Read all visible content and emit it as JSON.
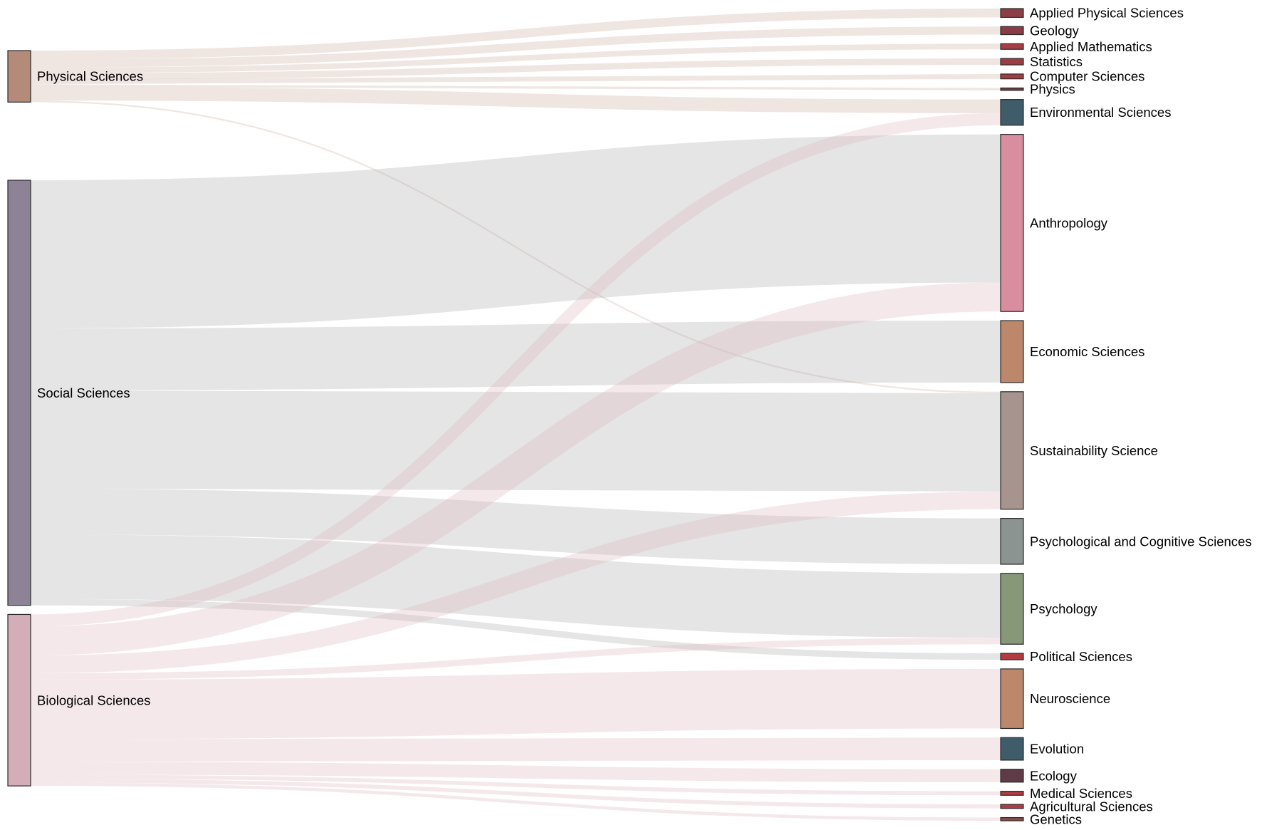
{
  "chart_data": {
    "type": "sankey",
    "nodes": [
      {
        "name": "Physical Sciences",
        "color": "#b38b78",
        "link_color": "#cdb1a4"
      },
      {
        "name": "Social Sciences",
        "color": "#8e8296",
        "link_color": "#aeaeae"
      },
      {
        "name": "Biological Sciences",
        "color": "#d3adb8",
        "link_color": "#ddb7c1"
      },
      {
        "name": "Applied Physical Sciences",
        "color": "#8c3d45"
      },
      {
        "name": "Geology",
        "color": "#8c3a44"
      },
      {
        "name": "Applied Mathematics",
        "color": "#a63c46"
      },
      {
        "name": "Statistics",
        "color": "#9e3b45"
      },
      {
        "name": "Computer Sciences",
        "color": "#a63a42"
      },
      {
        "name": "Physics",
        "color": "#6e3a44"
      },
      {
        "name": "Environmental Sciences",
        "color": "#3e5c69"
      },
      {
        "name": "Anthropology",
        "color": "#d98e9f"
      },
      {
        "name": "Economic Sciences",
        "color": "#bc876b"
      },
      {
        "name": "Sustainability Science",
        "color": "#a7948e"
      },
      {
        "name": "Psychological and Cognitive Sciences",
        "color": "#8b9491"
      },
      {
        "name": "Psychology",
        "color": "#869878"
      },
      {
        "name": "Political Sciences",
        "color": "#b33a42"
      },
      {
        "name": "Neuroscience",
        "color": "#bc876b"
      },
      {
        "name": "Evolution",
        "color": "#3e5c69"
      },
      {
        "name": "Ecology",
        "color": "#5f3b48"
      },
      {
        "name": "Medical Sciences",
        "color": "#b33a42"
      },
      {
        "name": "Agricultural Sciences",
        "color": "#b33a42"
      },
      {
        "name": "Genetics",
        "color": "#8a4a48"
      }
    ],
    "links": [
      {
        "source": 0,
        "target": 3,
        "value": 11
      },
      {
        "source": 0,
        "target": 4,
        "value": 10
      },
      {
        "source": 0,
        "target": 5,
        "value": 7
      },
      {
        "source": 0,
        "target": 6,
        "value": 8
      },
      {
        "source": 0,
        "target": 7,
        "value": 6
      },
      {
        "source": 0,
        "target": 8,
        "value": 3
      },
      {
        "source": 0,
        "target": 9,
        "value": 17
      },
      {
        "source": 0,
        "target": 12,
        "value": 2
      },
      {
        "source": 1,
        "target": 10,
        "value": 184
      },
      {
        "source": 1,
        "target": 11,
        "value": 77
      },
      {
        "source": 1,
        "target": 12,
        "value": 122
      },
      {
        "source": 1,
        "target": 13,
        "value": 57
      },
      {
        "source": 1,
        "target": 14,
        "value": 80
      },
      {
        "source": 1,
        "target": 15,
        "value": 8
      },
      {
        "source": 2,
        "target": 9,
        "value": 15
      },
      {
        "source": 2,
        "target": 10,
        "value": 36
      },
      {
        "source": 2,
        "target": 12,
        "value": 22
      },
      {
        "source": 2,
        "target": 14,
        "value": 8
      },
      {
        "source": 2,
        "target": 16,
        "value": 74
      },
      {
        "source": 2,
        "target": 17,
        "value": 28
      },
      {
        "source": 2,
        "target": 18,
        "value": 16
      },
      {
        "source": 2,
        "target": 19,
        "value": 5
      },
      {
        "source": 2,
        "target": 20,
        "value": 5
      },
      {
        "source": 2,
        "target": 21,
        "value": 4
      }
    ]
  }
}
